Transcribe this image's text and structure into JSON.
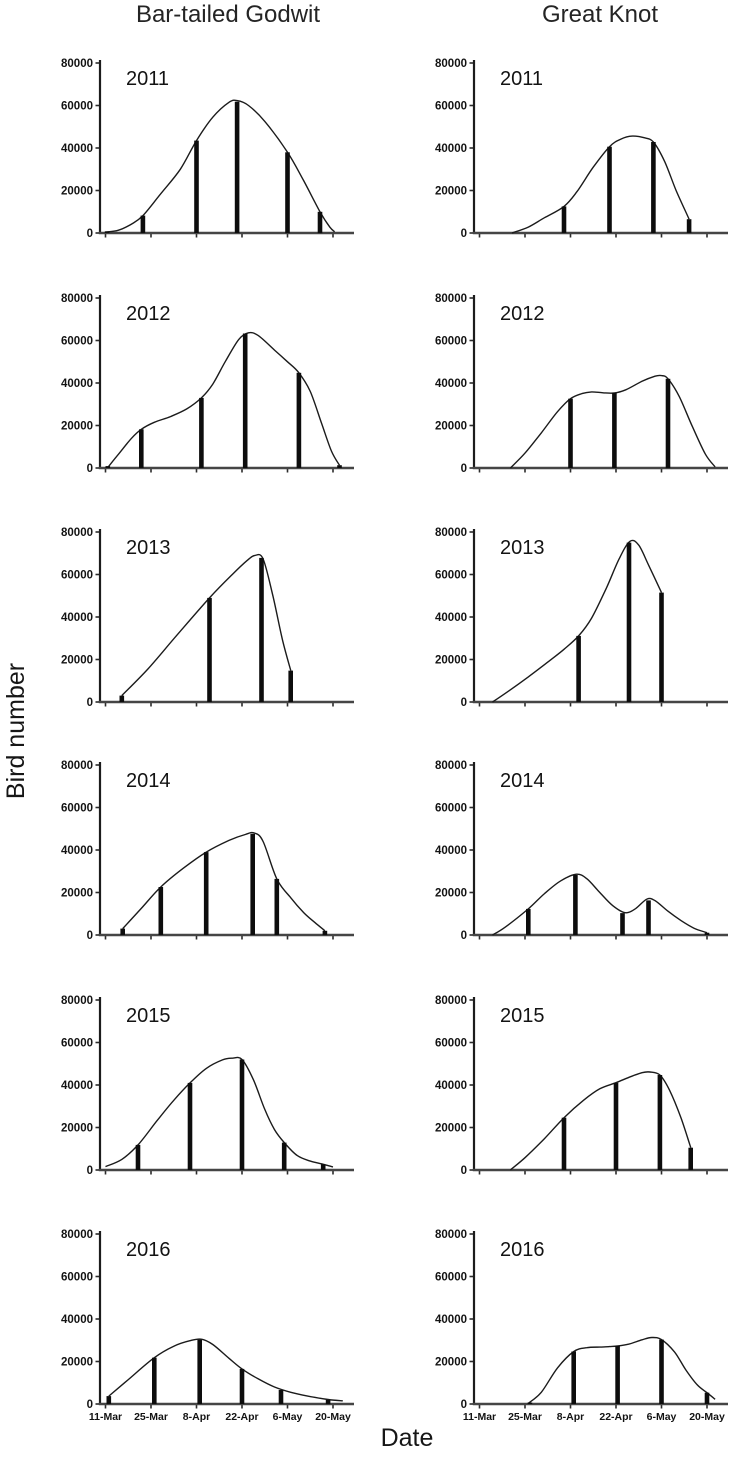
{
  "figure": {
    "columns": [
      {
        "title": "Bar-tailed Godwit"
      },
      {
        "title": "Great Knot"
      }
    ],
    "ylabel": "Bird number",
    "xlabel": "Date",
    "x_axis": {
      "tick_labels": [
        "11-Mar",
        "25-Mar",
        "8-Apr",
        "22-Apr",
        "6-May",
        "20-May"
      ],
      "tick_days": [
        0,
        14,
        28,
        42,
        56,
        70
      ],
      "unit": "days since 11-Mar"
    },
    "y_axis": {
      "tick_labels": [
        "0",
        "20000",
        "40000",
        "60000",
        "80000"
      ],
      "tick_values": [
        0,
        20000,
        40000,
        60000,
        80000
      ],
      "range": [
        0,
        80000
      ]
    }
  },
  "chart_data": [
    {
      "type": "line",
      "species": "Bar-tailed Godwit",
      "year": "2011",
      "ylim": [
        0,
        80000
      ],
      "bars": [
        [
          0.5,
          800
        ],
        [
          11.5,
          8200
        ],
        [
          28,
          43500
        ],
        [
          40.5,
          61800
        ],
        [
          56,
          38000
        ],
        [
          66,
          10000
        ]
      ],
      "curve": [
        [
          0,
          400
        ],
        [
          4,
          1300
        ],
        [
          8,
          4200
        ],
        [
          11.5,
          8200
        ],
        [
          17,
          18500
        ],
        [
          23,
          30000
        ],
        [
          28,
          43500
        ],
        [
          33,
          54500
        ],
        [
          38,
          61500
        ],
        [
          40.5,
          62300
        ],
        [
          44,
          60000
        ],
        [
          49,
          52500
        ],
        [
          56,
          38000
        ],
        [
          61,
          24500
        ],
        [
          66,
          10000
        ],
        [
          69,
          2800
        ],
        [
          70.5,
          600
        ]
      ]
    },
    {
      "type": "line",
      "species": "Great Knot",
      "year": "2011",
      "ylim": [
        0,
        80000
      ],
      "bars": [
        [
          26,
          12500
        ],
        [
          40,
          40600
        ],
        [
          53.5,
          42800
        ],
        [
          64.5,
          6500
        ]
      ],
      "curve": [
        [
          10,
          0
        ],
        [
          15,
          2800
        ],
        [
          20,
          7200
        ],
        [
          26,
          12500
        ],
        [
          30,
          19500
        ],
        [
          35,
          31000
        ],
        [
          40,
          40600
        ],
        [
          43.5,
          44200
        ],
        [
          47,
          45600
        ],
        [
          50.5,
          44900
        ],
        [
          53.5,
          42800
        ],
        [
          57,
          33500
        ],
        [
          60.5,
          20000
        ],
        [
          64.5,
          6500
        ]
      ]
    },
    {
      "type": "line",
      "species": "Bar-tailed Godwit",
      "year": "2012",
      "ylim": [
        0,
        80000
      ],
      "bars": [
        [
          0.7,
          900
        ],
        [
          11,
          18200
        ],
        [
          29.5,
          33000
        ],
        [
          43,
          63300
        ],
        [
          59.5,
          44800
        ],
        [
          72,
          1300
        ]
      ],
      "curve": [
        [
          0.7,
          300
        ],
        [
          4,
          6500
        ],
        [
          8,
          14000
        ],
        [
          11,
          18200
        ],
        [
          15,
          21500
        ],
        [
          20,
          24200
        ],
        [
          25,
          27800
        ],
        [
          29.5,
          33000
        ],
        [
          33,
          39500
        ],
        [
          37,
          50500
        ],
        [
          41,
          60500
        ],
        [
          44,
          63600
        ],
        [
          47,
          62300
        ],
        [
          52,
          55500
        ],
        [
          56,
          50000
        ],
        [
          59.5,
          44800
        ],
        [
          63,
          36000
        ],
        [
          66.5,
          21000
        ],
        [
          69.5,
          8000
        ],
        [
          72,
          1300
        ]
      ]
    },
    {
      "type": "line",
      "species": "Great Knot",
      "year": "2012",
      "ylim": [
        0,
        80000
      ],
      "bars": [
        [
          28,
          32600
        ],
        [
          41.5,
          35300
        ],
        [
          58,
          42000
        ]
      ],
      "curve": [
        [
          9.5,
          0
        ],
        [
          14,
          7000
        ],
        [
          19,
          16500
        ],
        [
          24,
          26500
        ],
        [
          28,
          32600
        ],
        [
          31.5,
          35000
        ],
        [
          34.5,
          35800
        ],
        [
          38,
          35400
        ],
        [
          41.5,
          35300
        ],
        [
          45,
          36800
        ],
        [
          50,
          40800
        ],
        [
          54,
          43200
        ],
        [
          56,
          43500
        ],
        [
          58,
          42000
        ],
        [
          61.5,
          33500
        ],
        [
          65.5,
          19500
        ],
        [
          69.5,
          6500
        ],
        [
          72.5,
          500
        ]
      ]
    },
    {
      "type": "line",
      "species": "Bar-tailed Godwit",
      "year": "2013",
      "ylim": [
        0,
        80000
      ],
      "bars": [
        [
          5,
          3000
        ],
        [
          32,
          49000
        ],
        [
          48,
          67800
        ],
        [
          57,
          14800
        ]
      ],
      "curve": [
        [
          5,
          3000
        ],
        [
          13,
          15500
        ],
        [
          22,
          31500
        ],
        [
          32,
          49000
        ],
        [
          39,
          60000
        ],
        [
          43.5,
          66500
        ],
        [
          46,
          69000
        ],
        [
          48.5,
          67300
        ],
        [
          51.5,
          50000
        ],
        [
          54.5,
          29000
        ],
        [
          57,
          14800
        ]
      ]
    },
    {
      "type": "line",
      "species": "Great Knot",
      "year": "2013",
      "ylim": [
        0,
        80000
      ],
      "bars": [
        [
          30.5,
          31100
        ],
        [
          46,
          75000
        ],
        [
          56,
          51500
        ]
      ],
      "curve": [
        [
          4,
          0
        ],
        [
          9,
          5200
        ],
        [
          15,
          11800
        ],
        [
          21,
          18800
        ],
        [
          26,
          24800
        ],
        [
          30.5,
          31100
        ],
        [
          34.5,
          39500
        ],
        [
          39,
          53500
        ],
        [
          43,
          67500
        ],
        [
          46.3,
          75600
        ],
        [
          49,
          73800
        ],
        [
          52,
          64500
        ],
        [
          56,
          51500
        ]
      ]
    },
    {
      "type": "line",
      "species": "Bar-tailed Godwit",
      "year": "2014",
      "ylim": [
        0,
        80000
      ],
      "bars": [
        [
          5.3,
          3000
        ],
        [
          17,
          22600
        ],
        [
          31,
          39000
        ],
        [
          45.3,
          47600
        ],
        [
          52.7,
          26400
        ],
        [
          67.5,
          2000
        ]
      ],
      "curve": [
        [
          5.3,
          3000
        ],
        [
          11,
          12500
        ],
        [
          17,
          22600
        ],
        [
          24,
          31500
        ],
        [
          31,
          39000
        ],
        [
          38,
          44500
        ],
        [
          43,
          47300
        ],
        [
          45.8,
          48000
        ],
        [
          48.5,
          44000
        ],
        [
          52.7,
          26400
        ],
        [
          57,
          17500
        ],
        [
          61,
          10500
        ],
        [
          64.5,
          5800
        ],
        [
          67.5,
          2000
        ]
      ]
    },
    {
      "type": "line",
      "species": "Great Knot",
      "year": "2014",
      "ylim": [
        0,
        80000
      ],
      "bars": [
        [
          15,
          12300
        ],
        [
          29.5,
          28300
        ],
        [
          44,
          10300
        ],
        [
          52,
          16300
        ],
        [
          70,
          1100
        ]
      ],
      "curve": [
        [
          4,
          0
        ],
        [
          8,
          3800
        ],
        [
          15,
          12300
        ],
        [
          20,
          19500
        ],
        [
          25,
          25500
        ],
        [
          29.8,
          28600
        ],
        [
          33,
          26500
        ],
        [
          37,
          20000
        ],
        [
          41,
          13800
        ],
        [
          44.8,
          10500
        ],
        [
          48,
          12400
        ],
        [
          51.5,
          16900
        ],
        [
          54,
          16200
        ],
        [
          58,
          11200
        ],
        [
          62,
          6800
        ],
        [
          66,
          3200
        ],
        [
          70,
          1100
        ]
      ]
    },
    {
      "type": "line",
      "species": "Bar-tailed Godwit",
      "year": "2015",
      "ylim": [
        0,
        80000
      ],
      "bars": [
        [
          10,
          11800
        ],
        [
          26,
          41000
        ],
        [
          42,
          52000
        ],
        [
          55,
          12900
        ],
        [
          67,
          2700
        ]
      ],
      "curve": [
        [
          0,
          1600
        ],
        [
          5,
          5000
        ],
        [
          10,
          11800
        ],
        [
          16,
          23500
        ],
        [
          21,
          32800
        ],
        [
          26,
          41000
        ],
        [
          31,
          47800
        ],
        [
          36,
          51800
        ],
        [
          39,
          52600
        ],
        [
          42,
          52000
        ],
        [
          45.5,
          42500
        ],
        [
          49,
          28500
        ],
        [
          52,
          19000
        ],
        [
          55,
          12900
        ],
        [
          59,
          6800
        ],
        [
          63,
          4200
        ],
        [
          67,
          2700
        ],
        [
          70,
          1400
        ]
      ]
    },
    {
      "type": "line",
      "species": "Great Knot",
      "year": "2015",
      "ylim": [
        0,
        80000
      ],
      "bars": [
        [
          26,
          24600
        ],
        [
          42,
          41100
        ],
        [
          55.5,
          44700
        ],
        [
          65,
          10500
        ]
      ],
      "curve": [
        [
          9.5,
          0
        ],
        [
          14,
          5800
        ],
        [
          20,
          14800
        ],
        [
          26,
          24600
        ],
        [
          32,
          32800
        ],
        [
          37,
          38200
        ],
        [
          42,
          41100
        ],
        [
          46,
          43600
        ],
        [
          50,
          45800
        ],
        [
          52.5,
          46100
        ],
        [
          55.5,
          44700
        ],
        [
          58.5,
          37500
        ],
        [
          62,
          24500
        ],
        [
          65,
          10500
        ]
      ]
    },
    {
      "type": "line",
      "species": "Bar-tailed Godwit",
      "year": "2016",
      "ylim": [
        0,
        80000
      ],
      "bars": [
        [
          1,
          3700
        ],
        [
          15,
          21800
        ],
        [
          29,
          30300
        ],
        [
          42,
          16500
        ],
        [
          54,
          6600
        ],
        [
          68.5,
          2000
        ]
      ],
      "curve": [
        [
          1,
          3700
        ],
        [
          7,
          11500
        ],
        [
          15,
          21800
        ],
        [
          21,
          27200
        ],
        [
          26,
          29800
        ],
        [
          29.5,
          30500
        ],
        [
          33,
          28000
        ],
        [
          38,
          21500
        ],
        [
          42,
          16500
        ],
        [
          47,
          11800
        ],
        [
          52,
          8000
        ],
        [
          57,
          5500
        ],
        [
          62,
          3800
        ],
        [
          68.5,
          2100
        ],
        [
          73,
          1500
        ]
      ]
    },
    {
      "type": "line",
      "species": "Great Knot",
      "year": "2016",
      "ylim": [
        0,
        80000
      ],
      "bars": [
        [
          15.5,
          700
        ],
        [
          29,
          24700
        ],
        [
          42.5,
          27300
        ],
        [
          56,
          30300
        ],
        [
          70,
          5300
        ]
      ],
      "curve": [
        [
          15,
          300
        ],
        [
          19,
          5500
        ],
        [
          24,
          17000
        ],
        [
          29,
          24700
        ],
        [
          33,
          26500
        ],
        [
          37,
          26800
        ],
        [
          40,
          27000
        ],
        [
          42.5,
          27300
        ],
        [
          46,
          28200
        ],
        [
          50,
          30200
        ],
        [
          53,
          31300
        ],
        [
          56,
          30300
        ],
        [
          60,
          24500
        ],
        [
          63.5,
          16000
        ],
        [
          67,
          9000
        ],
        [
          70,
          5300
        ],
        [
          72.5,
          2200
        ]
      ]
    }
  ]
}
